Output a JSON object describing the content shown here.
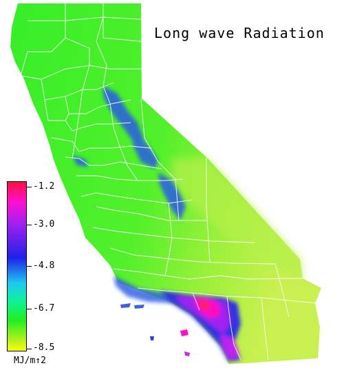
{
  "title": "Long wave Radiation",
  "legend": {
    "ticks": [
      "-1.2",
      "-3.0",
      "-4.8",
      "-6.7",
      "-8.5"
    ],
    "unit": "MJ/m↑2",
    "gradient_colors": [
      "#ff1040",
      "#ff10d0",
      "#a020f0",
      "#2020e8",
      "#20c8f0",
      "#10f0a0",
      "#20ef20",
      "#b8f020",
      "#ffff00"
    ]
  },
  "colors": {
    "base_land": "#3fef2a",
    "desert_east": "#a8f040",
    "sierra_cold": "#2848e0",
    "la_basin": "#ff10c0",
    "county_lines": "#ffffff"
  }
}
